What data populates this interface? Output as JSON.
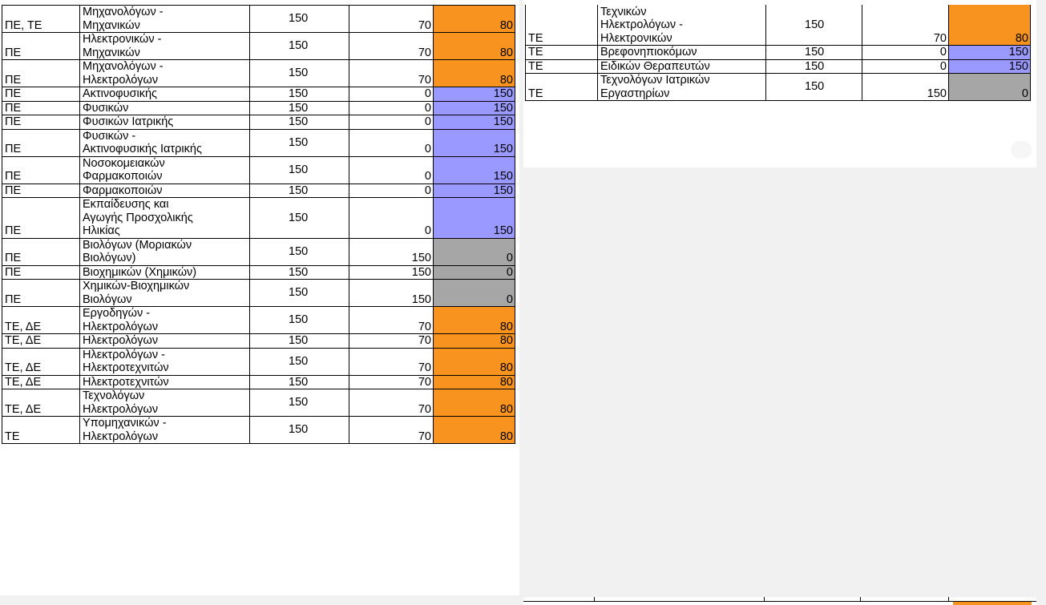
{
  "left_table": [
    {
      "cat": "ΠΕ, ΤΕ",
      "name_lines": [
        "Μηχανολόγων -",
        "Μηχανικών"
      ],
      "total": "150",
      "filled": "70",
      "remaining": "80",
      "status": "orange"
    },
    {
      "cat": "ΠΕ",
      "name_lines": [
        "Ηλεκτρονικών -",
        "Μηχανικών"
      ],
      "total": "150",
      "filled": "70",
      "remaining": "80",
      "status": "orange"
    },
    {
      "cat": "ΠΕ",
      "name_lines": [
        "Μηχανολόγων -",
        "Ηλεκτρολόγων"
      ],
      "total": "150",
      "filled": "70",
      "remaining": "80",
      "status": "orange"
    },
    {
      "cat": "ΠΕ",
      "name_lines": [
        "Ακτινοφυσικής"
      ],
      "total": "150",
      "filled": "0",
      "remaining": "150",
      "status": "blue"
    },
    {
      "cat": "ΠΕ",
      "name_lines": [
        "Φυσικών"
      ],
      "total": "150",
      "filled": "0",
      "remaining": "150",
      "status": "blue"
    },
    {
      "cat": "ΠΕ",
      "name_lines": [
        "Φυσικών Ιατρικής"
      ],
      "total": "150",
      "filled": "0",
      "remaining": "150",
      "status": "blue"
    },
    {
      "cat": "ΠΕ",
      "name_lines": [
        "Φυσικών -",
        "Ακτινοφυσικής Ιατρικής"
      ],
      "total": "150",
      "filled": "0",
      "remaining": "150",
      "status": "blue"
    },
    {
      "cat": "ΠΕ",
      "name_lines": [
        "Νοσοκομειακών",
        "Φαρμακοποιών"
      ],
      "total": "150",
      "filled": "0",
      "remaining": "150",
      "status": "blue"
    },
    {
      "cat": "ΠΕ",
      "name_lines": [
        "Φαρμακοποιών"
      ],
      "total": "150",
      "filled": "0",
      "remaining": "150",
      "status": "blue"
    },
    {
      "cat": "ΠΕ",
      "name_lines": [
        "Εκπαίδευσης και",
        "Αγωγής Προσχολικής",
        "Ηλικίας"
      ],
      "total": "150",
      "filled": "0",
      "remaining": "150",
      "status": "blue"
    },
    {
      "cat": "ΠΕ",
      "name_lines": [
        "Βιολόγων (Μοριακών",
        "Βιολόγων)"
      ],
      "total": "150",
      "filled": "150",
      "remaining": "0",
      "status": "gray"
    },
    {
      "cat": "ΠΕ",
      "name_lines": [
        "Βιοχημικών (Χημικών)"
      ],
      "total": "150",
      "filled": "150",
      "remaining": "0",
      "status": "gray"
    },
    {
      "cat": "ΠΕ",
      "name_lines": [
        "Χημικών-Βιοχημικών",
        "Βιολόγων"
      ],
      "total": "150",
      "filled": "150",
      "remaining": "0",
      "status": "gray"
    },
    {
      "cat": "ΤΕ, ΔΕ",
      "name_lines": [
        "Εργοδηγών -",
        "Ηλεκτρολόγων"
      ],
      "total": "150",
      "filled": "70",
      "remaining": "80",
      "status": "orange"
    },
    {
      "cat": "ΤΕ, ΔΕ",
      "name_lines": [
        "Ηλεκτρολόγων"
      ],
      "total": "150",
      "filled": "70",
      "remaining": "80",
      "status": "orange"
    },
    {
      "cat": "ΤΕ, ΔΕ",
      "name_lines": [
        "Ηλεκτρολόγων -",
        "Ηλεκτροτεχνιτών"
      ],
      "total": "150",
      "filled": "70",
      "remaining": "80",
      "status": "orange"
    },
    {
      "cat": "ΤΕ, ΔΕ",
      "name_lines": [
        "Ηλεκτροτεχνιτών"
      ],
      "total": "150",
      "filled": "70",
      "remaining": "80",
      "status": "orange"
    },
    {
      "cat": "ΤΕ, ΔΕ",
      "name_lines": [
        "Τεχνολόγων",
        "Ηλεκτρολόγων"
      ],
      "total": "150",
      "filled": "70",
      "remaining": "80",
      "status": "orange"
    },
    {
      "cat": "ΤΕ",
      "name_lines": [
        "Υπομηχανικών -",
        "Ηλεκτρολόγων"
      ],
      "total": "150",
      "filled": "70",
      "remaining": "80",
      "status": "orange"
    }
  ],
  "right_table": [
    {
      "cat": "ΤΕ",
      "name_lines": [
        "Τεχνικών",
        "Ηλεκτρολόγων -",
        "Ηλεκτρονικών"
      ],
      "total": "150",
      "filled": "70",
      "remaining": "80",
      "status": "orange"
    },
    {
      "cat": "ΤΕ",
      "name_lines": [
        "Βρεφονηπιοκόμων"
      ],
      "total": "150",
      "filled": "0",
      "remaining": "150",
      "status": "blue"
    },
    {
      "cat": "ΤΕ",
      "name_lines": [
        "Ειδικών Θεραπευτών"
      ],
      "total": "150",
      "filled": "0",
      "remaining": "150",
      "status": "blue"
    },
    {
      "cat": "ΤΕ",
      "name_lines": [
        "Τεχνολόγων Ιατρικών",
        "Εργαστηρίων"
      ],
      "total": "150",
      "filled": "150",
      "remaining": "0",
      "status": "gray"
    }
  ],
  "colors": {
    "orange": "#f7931e",
    "blue": "#9999ff",
    "gray": "#a6a6a6"
  }
}
